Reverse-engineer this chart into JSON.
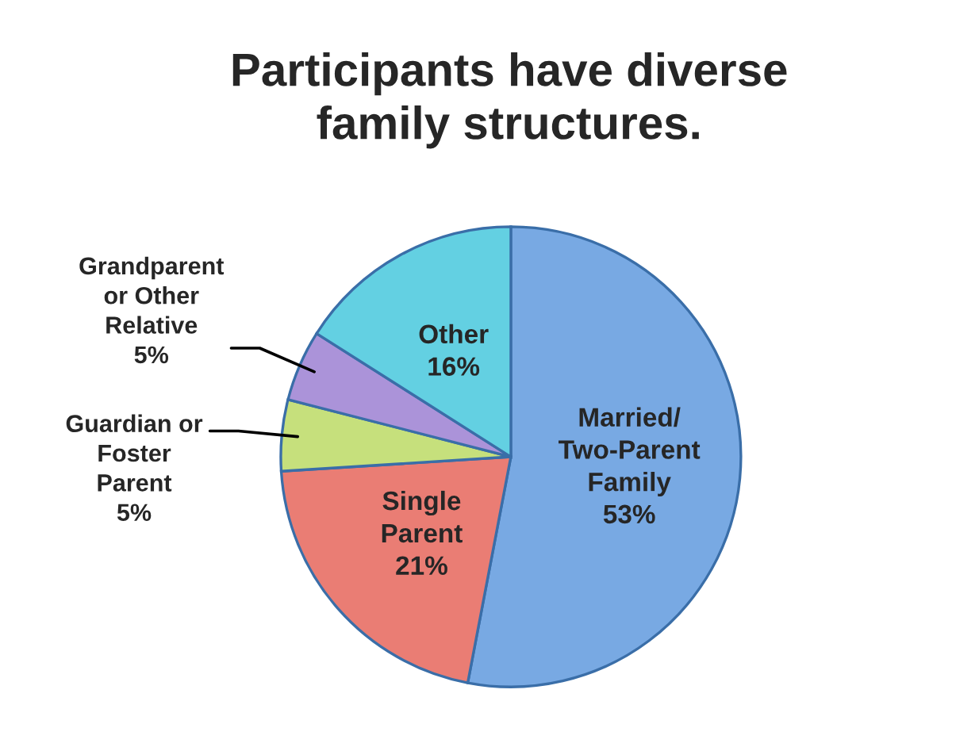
{
  "chart_data": {
    "type": "pie",
    "title": "Participants have diverse\nfamily structures.",
    "categories": [
      "Married/\nTwo-Parent\nFamily",
      "Single\nParent",
      "Guardian or\nFoster\nParent",
      "Grandparent\nor Other\nRelative",
      "Other"
    ],
    "values": [
      53,
      21,
      5,
      5,
      16
    ],
    "value_labels": [
      "53%",
      "21%",
      "5%",
      "5%",
      "16%"
    ],
    "colors": [
      "#78a9e3",
      "#ea7d74",
      "#c6e07c",
      "#ab93d9",
      "#63d0e2"
    ]
  }
}
